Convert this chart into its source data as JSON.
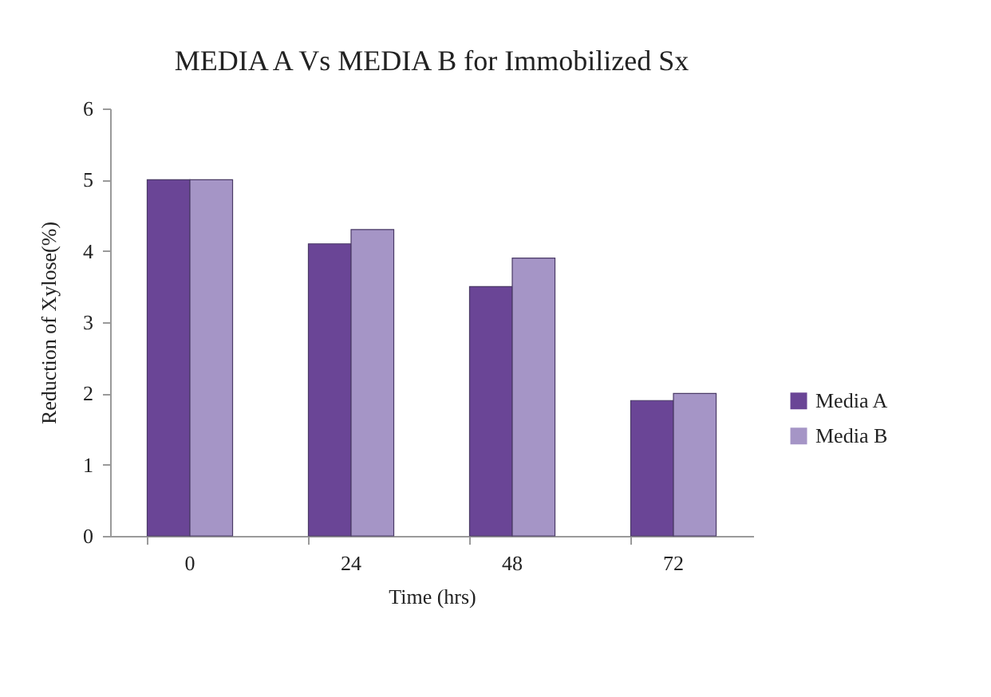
{
  "chart_data": {
    "type": "bar",
    "title": "MEDIA A Vs MEDIA B for Immobilized Sx",
    "xlabel": "Time (hrs)",
    "ylabel": "Reduction of Xylose(%)",
    "categories": [
      "0",
      "24",
      "48",
      "72"
    ],
    "series": [
      {
        "name": "Media A",
        "color": "#6a4596",
        "values": [
          5.0,
          4.1,
          3.5,
          1.9
        ]
      },
      {
        "name": "Media B",
        "color": "#a595c6",
        "values": [
          5.0,
          4.3,
          3.9,
          2.0
        ]
      }
    ],
    "ylim": [
      0,
      6
    ],
    "yticks": [
      0,
      1,
      2,
      3,
      4,
      5,
      6
    ],
    "grid": false,
    "legend": "right"
  }
}
